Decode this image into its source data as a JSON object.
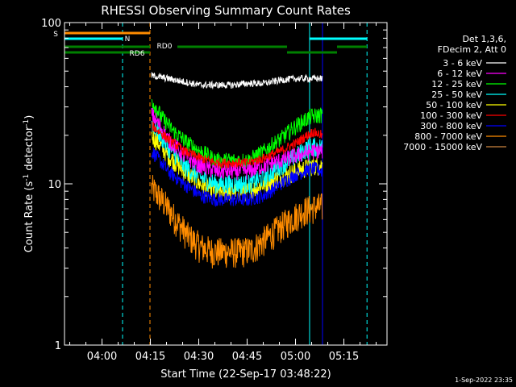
{
  "chart_data": {
    "type": "line",
    "title": "RHESSI Observing Summary Count Rates",
    "xlabel": "Start Time (22-Sep-17 03:48:22)",
    "ylabel": "Count Rate (s",
    "ylabel_sup1": "-1",
    "ylabel_mid": " detector",
    "ylabel_sup2": "-1",
    "ylabel_end": ")",
    "y_scale": "log",
    "xlim_minutes": [
      0,
      100
    ],
    "ylim": [
      1,
      100
    ],
    "x_ticks": [
      {
        "label": "04:00",
        "min": 11.63
      },
      {
        "label": "04:15",
        "min": 26.63
      },
      {
        "label": "04:30",
        "min": 41.63
      },
      {
        "label": "04:45",
        "min": 56.63
      },
      {
        "label": "05:00",
        "min": 71.63
      },
      {
        "label": "05:15",
        "min": 86.63
      }
    ],
    "y_ticks": [
      {
        "label": "1",
        "value": 1
      },
      {
        "label": "10",
        "value": 10
      },
      {
        "label": "100",
        "value": 100
      }
    ],
    "legend_header": [
      "Det 1,3,6,",
      "FDecim 2, Att 0"
    ],
    "legend_position": "right",
    "series": [
      {
        "name": "3 - 6 keV",
        "color": "#ffffff",
        "points": [
          [
            27,
            47
          ],
          [
            32,
            45
          ],
          [
            37,
            43
          ],
          [
            42,
            41
          ],
          [
            47,
            41
          ],
          [
            52,
            41
          ],
          [
            57,
            42
          ],
          [
            62,
            42
          ],
          [
            67,
            44
          ],
          [
            72,
            45
          ],
          [
            77,
            45
          ],
          [
            80,
            45
          ]
        ]
      },
      {
        "name": "6 - 12 keV",
        "color": "#ff00ff",
        "points": [
          [
            27,
            27
          ],
          [
            32,
            19
          ],
          [
            37,
            15
          ],
          [
            42,
            13
          ],
          [
            47,
            12
          ],
          [
            52,
            12
          ],
          [
            57,
            12
          ],
          [
            62,
            13
          ],
          [
            67,
            14
          ],
          [
            72,
            15
          ],
          [
            77,
            16
          ],
          [
            80,
            16
          ]
        ]
      },
      {
        "name": "12 - 25 keV",
        "color": "#00ff00",
        "points": [
          [
            27,
            33
          ],
          [
            30,
            26
          ],
          [
            34,
            21
          ],
          [
            38,
            18
          ],
          [
            42,
            16
          ],
          [
            47,
            14
          ],
          [
            52,
            14
          ],
          [
            57,
            14
          ],
          [
            62,
            16
          ],
          [
            67,
            19
          ],
          [
            72,
            23
          ],
          [
            76,
            26
          ],
          [
            80,
            27
          ]
        ]
      },
      {
        "name": "25 - 50 keV",
        "color": "#00ffff",
        "points": [
          [
            27,
            24
          ],
          [
            32,
            17
          ],
          [
            37,
            13
          ],
          [
            42,
            11
          ],
          [
            47,
            10
          ],
          [
            52,
            10
          ],
          [
            57,
            10
          ],
          [
            62,
            11
          ],
          [
            67,
            13
          ],
          [
            72,
            15
          ],
          [
            76,
            17
          ],
          [
            80,
            17
          ]
        ]
      },
      {
        "name": "50 - 100 keV",
        "color": "#ffff00",
        "points": [
          [
            27,
            20
          ],
          [
            32,
            15
          ],
          [
            37,
            12
          ],
          [
            42,
            10
          ],
          [
            47,
            9
          ],
          [
            52,
            9
          ],
          [
            57,
            9
          ],
          [
            62,
            10
          ],
          [
            67,
            11
          ],
          [
            72,
            12
          ],
          [
            77,
            13
          ],
          [
            80,
            13
          ]
        ]
      },
      {
        "name": "100 - 300 keV",
        "color": "#ff0000",
        "points": [
          [
            27,
            23
          ],
          [
            32,
            19
          ],
          [
            37,
            16
          ],
          [
            42,
            14.5
          ],
          [
            47,
            13.5
          ],
          [
            52,
            13.5
          ],
          [
            57,
            13.5
          ],
          [
            62,
            14.5
          ],
          [
            67,
            16
          ],
          [
            72,
            18
          ],
          [
            77,
            21
          ],
          [
            80,
            20
          ]
        ]
      },
      {
        "name": "300 - 800 keV",
        "color": "#0000ff",
        "points": [
          [
            27,
            16
          ],
          [
            32,
            12
          ],
          [
            37,
            10
          ],
          [
            42,
            8.5
          ],
          [
            47,
            8
          ],
          [
            52,
            8
          ],
          [
            57,
            8
          ],
          [
            62,
            8.5
          ],
          [
            67,
            10
          ],
          [
            72,
            11.5
          ],
          [
            77,
            12.5
          ],
          [
            80,
            12
          ]
        ]
      },
      {
        "name": "800 - 7000 keV",
        "color": "#ff8c00",
        "points": [
          [
            27,
            9.5
          ],
          [
            30,
            8
          ],
          [
            34,
            6.2
          ],
          [
            38,
            4.8
          ],
          [
            42,
            4.1
          ],
          [
            46,
            3.8
          ],
          [
            50,
            3.8
          ],
          [
            54,
            3.8
          ],
          [
            58,
            3.9
          ],
          [
            62,
            4.5
          ],
          [
            66,
            5.2
          ],
          [
            70,
            6
          ],
          [
            74,
            6.8
          ],
          [
            78,
            7.2
          ],
          [
            80,
            7.2
          ]
        ]
      },
      {
        "name": "7000 - 15000 keV",
        "color": "#cd853f",
        "points": []
      }
    ],
    "observing_flags": [
      {
        "label": "S",
        "color": "#ff8c00",
        "segments": [
          [
            0,
            26.5
          ]
        ]
      },
      {
        "label": "N",
        "color": "#00ffff",
        "segments": [
          [
            0,
            18
          ],
          [
            76,
            93.8
          ]
        ]
      },
      {
        "label": "RD0",
        "color": "#008000",
        "segments": [
          [
            0,
            26.5
          ],
          [
            35,
            69
          ]
        ]
      },
      {
        "label": "RD6",
        "color": "#008000",
        "segments": [
          [
            0,
            26.5
          ],
          [
            69,
            84.5
          ],
          [
            84.5,
            93.8
          ]
        ]
      }
    ],
    "vertical_markers": [
      {
        "min": 18,
        "color": "#00ffff",
        "style": "dashed"
      },
      {
        "min": 26.5,
        "color": "#ff8c00",
        "style": "dashed"
      },
      {
        "min": 76,
        "color": "#00ffff",
        "style": "solid"
      },
      {
        "min": 80,
        "color": "#0000ff",
        "style": "solid"
      },
      {
        "min": 93.8,
        "color": "#00ffff",
        "style": "dashed"
      }
    ]
  },
  "footer": {
    "timestamp": "1-Sep-2022 23:35"
  }
}
